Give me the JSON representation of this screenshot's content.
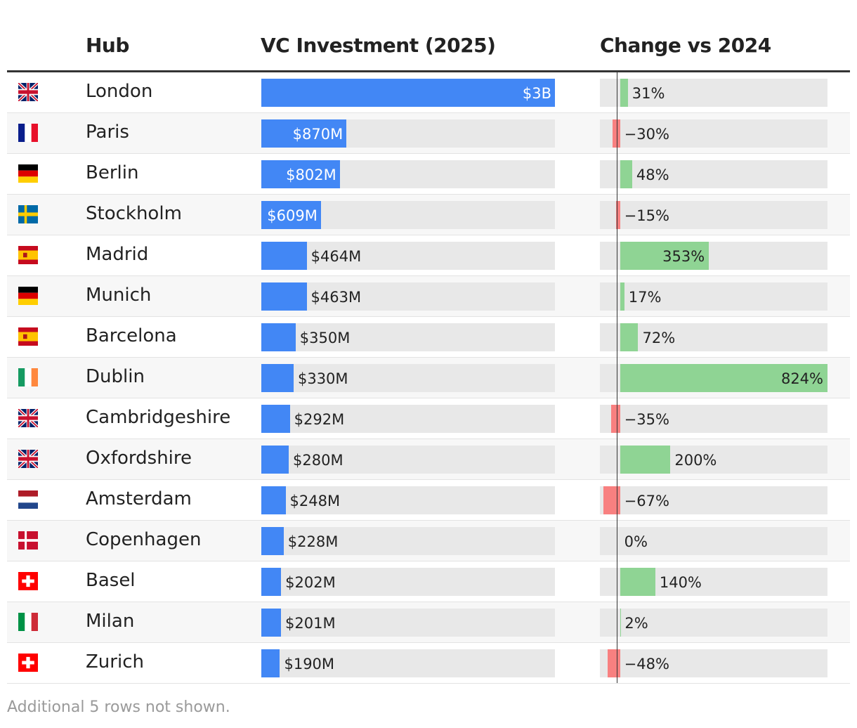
{
  "header": {
    "hub": "Hub",
    "investment": "VC Investment (2025)",
    "change": "Change vs 2024"
  },
  "footer": "Additional 5 rows not shown.",
  "colors": {
    "investment_bar": "#4287f5",
    "positive_change": "#8fd494",
    "negative_change": "#f88080",
    "track": "#e8e8e8"
  },
  "chart_data": {
    "type": "table",
    "columns": [
      "Hub",
      "VC Investment (2025)",
      "Change vs 2024"
    ],
    "investment_max": 3000,
    "change_domain": [
      -80,
      824
    ],
    "rows": [
      {
        "flag": "united-kingdom",
        "hub": "London",
        "investment": 3000,
        "investment_label": "$3B",
        "change": 31,
        "change_label": "31%"
      },
      {
        "flag": "france",
        "hub": "Paris",
        "investment": 870,
        "investment_label": "$870M",
        "change": -30,
        "change_label": "−30%"
      },
      {
        "flag": "germany",
        "hub": "Berlin",
        "investment": 802,
        "investment_label": "$802M",
        "change": 48,
        "change_label": "48%"
      },
      {
        "flag": "sweden",
        "hub": "Stockholm",
        "investment": 609,
        "investment_label": "$609M",
        "change": -15,
        "change_label": "−15%"
      },
      {
        "flag": "spain",
        "hub": "Madrid",
        "investment": 464,
        "investment_label": "$464M",
        "change": 353,
        "change_label": "353%"
      },
      {
        "flag": "germany",
        "hub": "Munich",
        "investment": 463,
        "investment_label": "$463M",
        "change": 17,
        "change_label": "17%"
      },
      {
        "flag": "spain",
        "hub": "Barcelona",
        "investment": 350,
        "investment_label": "$350M",
        "change": 72,
        "change_label": "72%"
      },
      {
        "flag": "ireland",
        "hub": "Dublin",
        "investment": 330,
        "investment_label": "$330M",
        "change": 824,
        "change_label": "824%"
      },
      {
        "flag": "united-kingdom",
        "hub": "Cambridgeshire",
        "investment": 292,
        "investment_label": "$292M",
        "change": -35,
        "change_label": "−35%"
      },
      {
        "flag": "united-kingdom",
        "hub": "Oxfordshire",
        "investment": 280,
        "investment_label": "$280M",
        "change": 200,
        "change_label": "200%"
      },
      {
        "flag": "netherlands",
        "hub": "Amsterdam",
        "investment": 248,
        "investment_label": "$248M",
        "change": -67,
        "change_label": "−67%"
      },
      {
        "flag": "denmark",
        "hub": "Copenhagen",
        "investment": 228,
        "investment_label": "$228M",
        "change": 0,
        "change_label": "0%"
      },
      {
        "flag": "switzerland",
        "hub": "Basel",
        "investment": 202,
        "investment_label": "$202M",
        "change": 140,
        "change_label": "140%"
      },
      {
        "flag": "italy",
        "hub": "Milan",
        "investment": 201,
        "investment_label": "$201M",
        "change": 2,
        "change_label": "2%"
      },
      {
        "flag": "switzerland",
        "hub": "Zurich",
        "investment": 190,
        "investment_label": "$190M",
        "change": -48,
        "change_label": "−48%"
      }
    ]
  }
}
